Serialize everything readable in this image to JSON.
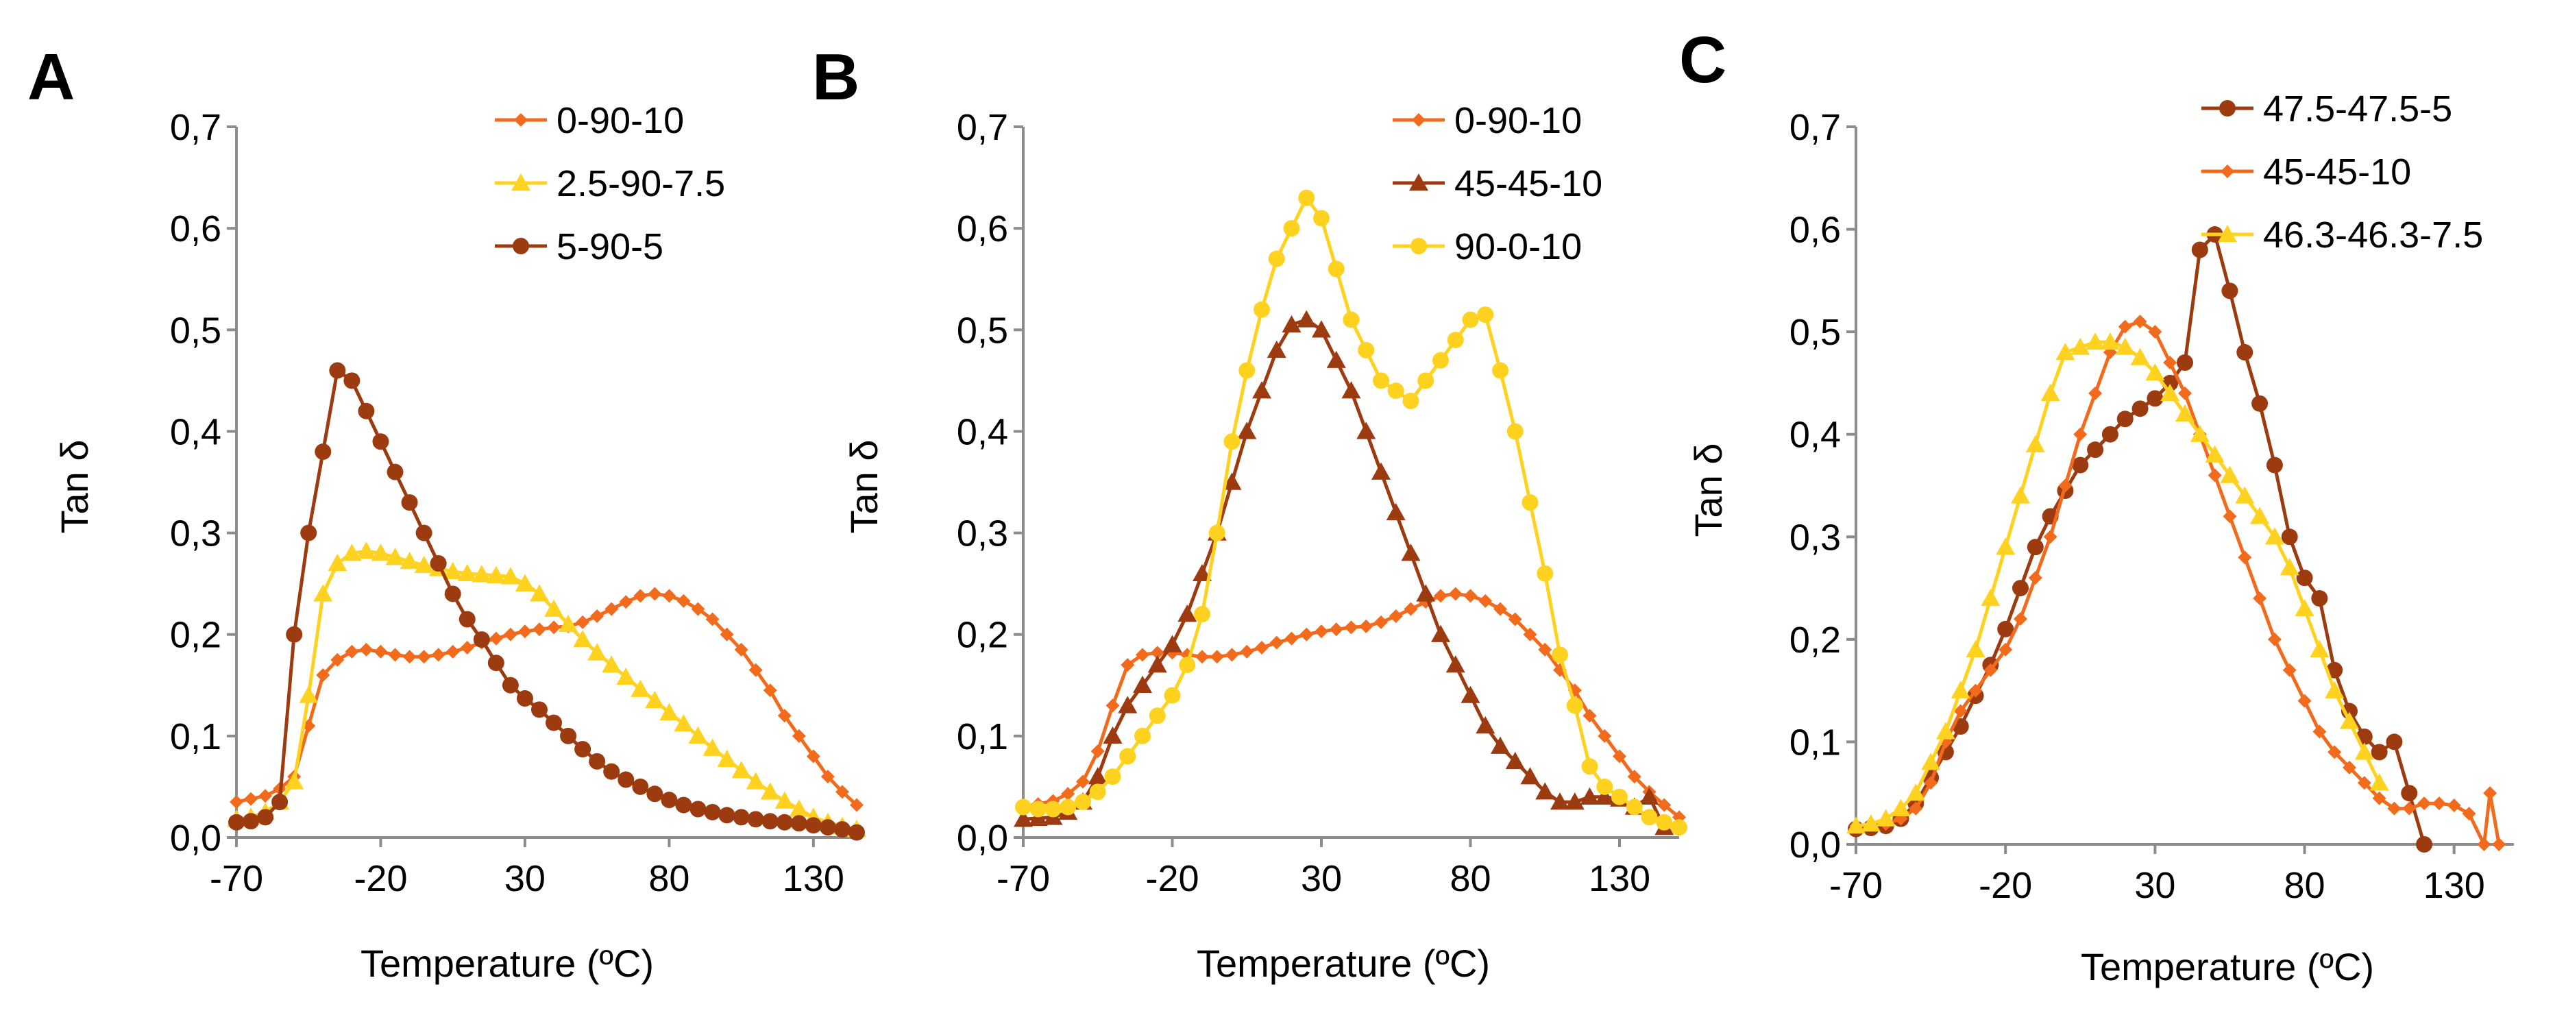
{
  "chart_data": [
    {
      "panel": "A",
      "type": "line",
      "xlabel": "Temperature (ºC)",
      "ylabel": "Tan δ",
      "xlim": [
        -70,
        145
      ],
      "ylim": [
        0,
        0.7
      ],
      "x_ticks": [
        "-70",
        "-20",
        "30",
        "80",
        "130"
      ],
      "y_ticks": [
        "0,0",
        "0,1",
        "0,2",
        "0,3",
        "0,4",
        "0,5",
        "0,6",
        "0,7"
      ],
      "legend_position": "top-right",
      "series": [
        {
          "name": "0-90-10",
          "color": "#f26a1b",
          "marker": "diamond",
          "x": [
            -70,
            -65,
            -60,
            -55,
            -50,
            -45,
            -40,
            -35,
            -30,
            -25,
            -20,
            -15,
            -10,
            -5,
            0,
            5,
            10,
            15,
            20,
            25,
            30,
            35,
            40,
            45,
            50,
            55,
            60,
            65,
            70,
            75,
            80,
            85,
            90,
            95,
            100,
            105,
            110,
            115,
            120,
            125,
            130,
            135,
            140,
            145
          ],
          "y": [
            0.035,
            0.038,
            0.041,
            0.048,
            0.06,
            0.11,
            0.16,
            0.175,
            0.183,
            0.185,
            0.183,
            0.18,
            0.178,
            0.178,
            0.18,
            0.183,
            0.187,
            0.192,
            0.196,
            0.2,
            0.203,
            0.205,
            0.207,
            0.208,
            0.212,
            0.218,
            0.225,
            0.232,
            0.238,
            0.24,
            0.238,
            0.233,
            0.225,
            0.215,
            0.2,
            0.185,
            0.165,
            0.145,
            0.12,
            0.1,
            0.08,
            0.06,
            0.045,
            0.032
          ]
        },
        {
          "name": "2.5-90-7.5",
          "color": "#ffd21f",
          "marker": "triangle",
          "x": [
            -70,
            -65,
            -60,
            -55,
            -50,
            -45,
            -40,
            -35,
            -30,
            -25,
            -20,
            -15,
            -10,
            -5,
            0,
            5,
            10,
            15,
            20,
            25,
            30,
            35,
            40,
            45,
            50,
            55,
            60,
            65,
            70,
            75,
            80,
            85,
            90,
            95,
            100,
            105,
            110,
            115,
            120,
            125,
            130,
            135,
            140,
            145
          ],
          "y": [
            0.018,
            0.02,
            0.025,
            0.035,
            0.055,
            0.14,
            0.24,
            0.27,
            0.28,
            0.282,
            0.28,
            0.276,
            0.272,
            0.268,
            0.265,
            0.262,
            0.26,
            0.259,
            0.258,
            0.257,
            0.25,
            0.24,
            0.225,
            0.21,
            0.195,
            0.182,
            0.17,
            0.158,
            0.146,
            0.135,
            0.123,
            0.112,
            0.1,
            0.088,
            0.077,
            0.066,
            0.055,
            0.045,
            0.036,
            0.028,
            0.02,
            0.015,
            0.011,
            0.008
          ]
        },
        {
          "name": "5-90-5",
          "color": "#9c3a10",
          "marker": "circle",
          "x": [
            -70,
            -65,
            -60,
            -55,
            -50,
            -45,
            -40,
            -35,
            -30,
            -25,
            -20,
            -15,
            -10,
            -5,
            0,
            5,
            10,
            15,
            20,
            25,
            30,
            35,
            40,
            45,
            50,
            55,
            60,
            65,
            70,
            75,
            80,
            85,
            90,
            95,
            100,
            105,
            110,
            115,
            120,
            125,
            130,
            135,
            140,
            145
          ],
          "y": [
            0.015,
            0.016,
            0.02,
            0.035,
            0.2,
            0.3,
            0.38,
            0.46,
            0.45,
            0.42,
            0.39,
            0.36,
            0.33,
            0.3,
            0.27,
            0.24,
            0.215,
            0.195,
            0.172,
            0.15,
            0.137,
            0.126,
            0.113,
            0.1,
            0.087,
            0.075,
            0.065,
            0.057,
            0.05,
            0.043,
            0.037,
            0.032,
            0.028,
            0.025,
            0.022,
            0.02,
            0.018,
            0.016,
            0.015,
            0.014,
            0.012,
            0.01,
            0.008,
            0.005
          ]
        }
      ]
    },
    {
      "panel": "B",
      "type": "line",
      "xlabel": "Temperature (ºC)",
      "ylabel": "Tan δ",
      "xlim": [
        -70,
        150
      ],
      "ylim": [
        0,
        0.7
      ],
      "x_ticks": [
        "-70",
        "-20",
        "30",
        "80",
        "130"
      ],
      "y_ticks": [
        "0,0",
        "0,1",
        "0,2",
        "0,3",
        "0,4",
        "0,5",
        "0,6",
        "0,7"
      ],
      "legend_position": "top-right",
      "series": [
        {
          "name": "0-90-10",
          "color": "#f26a1b",
          "marker": "diamond",
          "x": [
            -70,
            -65,
            -60,
            -55,
            -50,
            -45,
            -40,
            -35,
            -30,
            -25,
            -20,
            -15,
            -10,
            -5,
            0,
            5,
            10,
            15,
            20,
            25,
            30,
            35,
            40,
            45,
            50,
            55,
            60,
            65,
            70,
            75,
            80,
            85,
            90,
            95,
            100,
            105,
            110,
            115,
            120,
            125,
            130,
            135,
            140,
            145,
            150
          ],
          "y": [
            0.03,
            0.033,
            0.036,
            0.043,
            0.055,
            0.085,
            0.13,
            0.17,
            0.18,
            0.182,
            0.182,
            0.18,
            0.178,
            0.178,
            0.18,
            0.183,
            0.187,
            0.192,
            0.196,
            0.2,
            0.203,
            0.205,
            0.207,
            0.208,
            0.212,
            0.218,
            0.225,
            0.232,
            0.238,
            0.24,
            0.238,
            0.233,
            0.225,
            0.215,
            0.2,
            0.185,
            0.165,
            0.145,
            0.12,
            0.1,
            0.08,
            0.06,
            0.045,
            0.032,
            0.02
          ]
        },
        {
          "name": "45-45-10",
          "color": "#9c3a10",
          "marker": "triangle",
          "x": [
            -70,
            -65,
            -60,
            -55,
            -50,
            -45,
            -40,
            -35,
            -30,
            -25,
            -20,
            -15,
            -10,
            -5,
            0,
            5,
            10,
            15,
            20,
            25,
            30,
            35,
            40,
            45,
            50,
            55,
            60,
            65,
            70,
            75,
            80,
            85,
            90,
            95,
            100,
            105,
            110,
            115,
            120,
            125,
            130,
            135,
            140,
            145
          ],
          "y": [
            0.018,
            0.019,
            0.02,
            0.025,
            0.035,
            0.06,
            0.1,
            0.13,
            0.15,
            0.17,
            0.19,
            0.22,
            0.26,
            0.3,
            0.35,
            0.4,
            0.44,
            0.48,
            0.505,
            0.51,
            0.5,
            0.47,
            0.44,
            0.4,
            0.36,
            0.32,
            0.28,
            0.24,
            0.2,
            0.17,
            0.14,
            0.11,
            0.09,
            0.075,
            0.06,
            0.045,
            0.035,
            0.035,
            0.04,
            0.04,
            0.038,
            0.03,
            0.04,
            0.01
          ]
        },
        {
          "name": "90-0-10",
          "color": "#ffd21f",
          "marker": "circle",
          "x": [
            -70,
            -65,
            -60,
            -55,
            -50,
            -45,
            -40,
            -35,
            -30,
            -25,
            -20,
            -15,
            -10,
            -5,
            0,
            5,
            10,
            15,
            20,
            25,
            30,
            35,
            40,
            45,
            50,
            55,
            60,
            65,
            70,
            75,
            80,
            85,
            90,
            95,
            100,
            105,
            110,
            115,
            120,
            125,
            130,
            135,
            140,
            145,
            150
          ],
          "y": [
            0.03,
            0.028,
            0.028,
            0.03,
            0.035,
            0.045,
            0.06,
            0.08,
            0.1,
            0.12,
            0.14,
            0.17,
            0.22,
            0.3,
            0.39,
            0.46,
            0.52,
            0.57,
            0.6,
            0.63,
            0.61,
            0.56,
            0.51,
            0.48,
            0.45,
            0.44,
            0.43,
            0.45,
            0.47,
            0.49,
            0.51,
            0.515,
            0.46,
            0.4,
            0.33,
            0.26,
            0.18,
            0.13,
            0.07,
            0.05,
            0.04,
            0.03,
            0.02,
            0.015,
            0.01
          ]
        }
      ]
    },
    {
      "panel": "C",
      "type": "line",
      "xlabel": "Temperature (ºC)",
      "ylabel": "Tan δ",
      "xlim": [
        -70,
        150
      ],
      "ylim": [
        0,
        0.7
      ],
      "x_ticks": [
        "-70",
        "-20",
        "30",
        "80",
        "130"
      ],
      "y_ticks": [
        "0,0",
        "0,1",
        "0,2",
        "0,3",
        "0,4",
        "0,5",
        "0,6",
        "0,7"
      ],
      "legend_position": "top-right",
      "series": [
        {
          "name": "47.5-47.5-5",
          "color": "#9c3a10",
          "marker": "circle",
          "x": [
            -70,
            -65,
            -60,
            -55,
            -50,
            -45,
            -40,
            -35,
            -30,
            -25,
            -20,
            -15,
            -10,
            -5,
            0,
            5,
            10,
            15,
            20,
            25,
            30,
            35,
            40,
            45,
            50,
            55,
            60,
            65,
            70,
            75,
            80,
            85,
            90,
            95,
            100,
            105,
            110,
            115,
            120
          ],
          "y": [
            0.015,
            0.016,
            0.018,
            0.025,
            0.04,
            0.065,
            0.09,
            0.115,
            0.145,
            0.175,
            0.21,
            0.25,
            0.29,
            0.32,
            0.345,
            0.37,
            0.385,
            0.4,
            0.415,
            0.425,
            0.435,
            0.45,
            0.47,
            0.58,
            0.595,
            0.54,
            0.48,
            0.43,
            0.37,
            0.3,
            0.26,
            0.24,
            0.17,
            0.13,
            0.105,
            0.09,
            0.1,
            0.05,
            0.0
          ]
        },
        {
          "name": "45-45-10",
          "color": "#f26a1b",
          "marker": "diamond",
          "x": [
            -70,
            -65,
            -60,
            -55,
            -50,
            -45,
            -40,
            -35,
            -30,
            -25,
            -20,
            -15,
            -10,
            -5,
            0,
            5,
            10,
            15,
            20,
            25,
            30,
            35,
            40,
            45,
            50,
            55,
            60,
            65,
            70,
            75,
            80,
            85,
            90,
            95,
            100,
            105,
            110,
            115,
            120,
            125,
            130,
            135,
            140,
            142,
            145
          ],
          "y": [
            0.018,
            0.019,
            0.02,
            0.025,
            0.035,
            0.06,
            0.1,
            0.13,
            0.15,
            0.17,
            0.19,
            0.22,
            0.26,
            0.3,
            0.35,
            0.4,
            0.44,
            0.48,
            0.505,
            0.51,
            0.5,
            0.47,
            0.44,
            0.4,
            0.36,
            0.32,
            0.28,
            0.24,
            0.2,
            0.17,
            0.14,
            0.11,
            0.09,
            0.075,
            0.06,
            0.045,
            0.035,
            0.035,
            0.04,
            0.04,
            0.038,
            0.03,
            0.0,
            0.05,
            0.0
          ]
        },
        {
          "name": "46.3-46.3-7.5",
          "color": "#ffd21f",
          "marker": "triangle",
          "x": [
            -70,
            -65,
            -60,
            -55,
            -50,
            -45,
            -40,
            -35,
            -30,
            -25,
            -20,
            -15,
            -10,
            -5,
            0,
            5,
            10,
            15,
            20,
            25,
            30,
            35,
            40,
            45,
            50,
            55,
            60,
            65,
            70,
            75,
            80,
            85,
            90,
            95,
            100,
            105
          ],
          "y": [
            0.018,
            0.02,
            0.025,
            0.035,
            0.05,
            0.08,
            0.11,
            0.15,
            0.19,
            0.24,
            0.29,
            0.34,
            0.39,
            0.44,
            0.48,
            0.485,
            0.49,
            0.49,
            0.485,
            0.475,
            0.46,
            0.44,
            0.42,
            0.4,
            0.38,
            0.36,
            0.34,
            0.32,
            0.3,
            0.27,
            0.23,
            0.19,
            0.15,
            0.12,
            0.09,
            0.06
          ]
        }
      ]
    }
  ]
}
